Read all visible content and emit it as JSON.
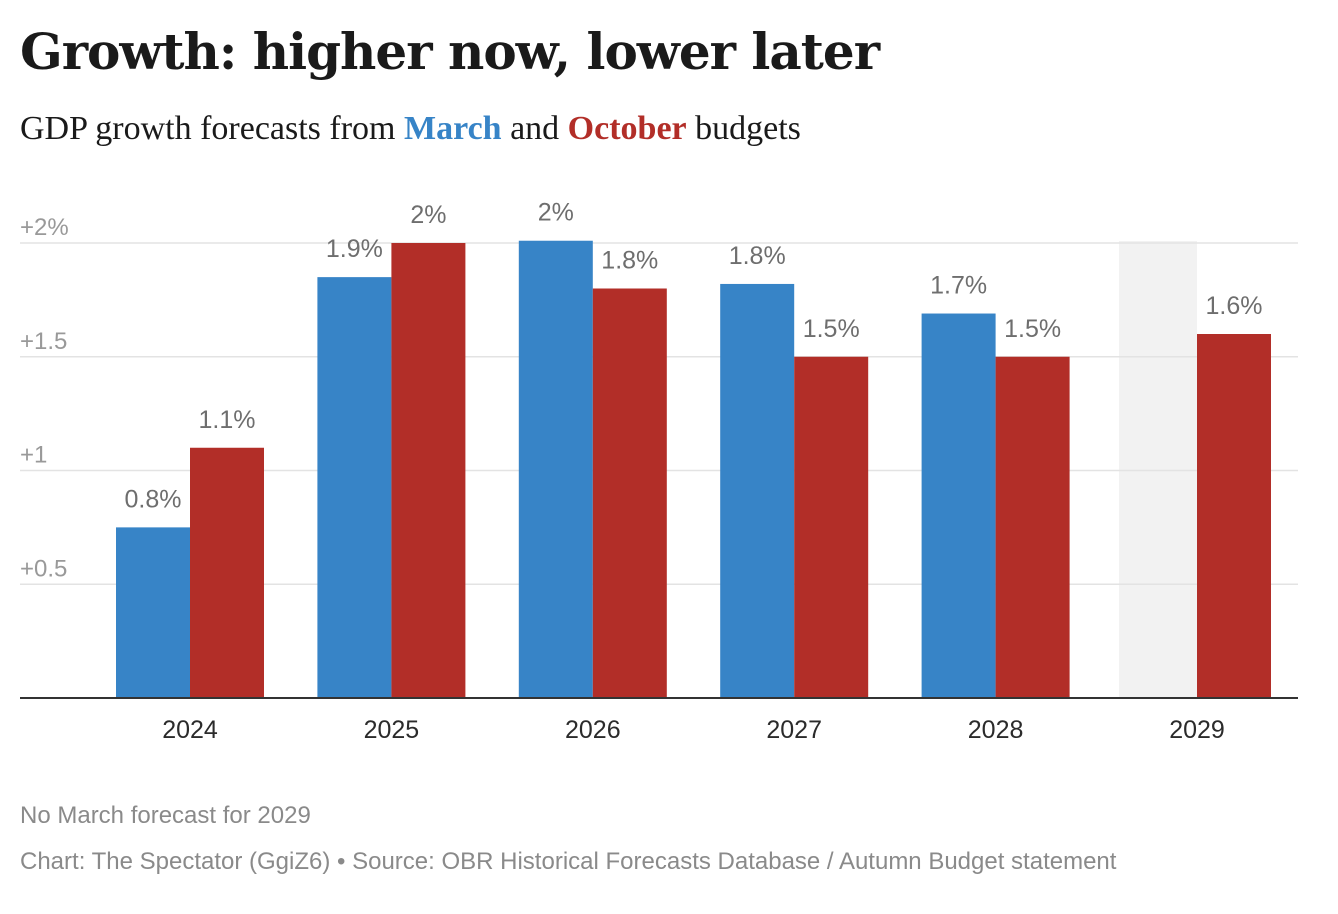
{
  "title": "Growth: higher now, lower later",
  "subtitle": {
    "prefix": "GDP growth forecasts from ",
    "march": "March",
    "middle": " and ",
    "october": "October",
    "suffix": " budgets"
  },
  "colors": {
    "march": "#3784c7",
    "october": "#b22e28",
    "highlight": "#f2f2f2",
    "grid": "#e3e3e3",
    "axis": "#333333",
    "tick": "#999999",
    "label": "#6e6e6e",
    "category": "#2b2b2b"
  },
  "chart_data": {
    "type": "bar",
    "categories": [
      "2024",
      "2025",
      "2026",
      "2027",
      "2028",
      "2029"
    ],
    "series": [
      {
        "name": "March",
        "values": [
          0.75,
          1.85,
          2.01,
          1.82,
          1.69,
          null
        ],
        "labels": [
          "0.8%",
          "1.9%",
          "2%",
          "1.8%",
          "1.7%",
          ""
        ]
      },
      {
        "name": "October",
        "values": [
          1.1,
          2.0,
          1.8,
          1.5,
          1.5,
          1.6
        ],
        "labels": [
          "1.1%",
          "2%",
          "1.8%",
          "1.5%",
          "1.5%",
          "1.6%"
        ]
      }
    ],
    "yticks": [
      {
        "value": 0.5,
        "label": "+0.5"
      },
      {
        "value": 1,
        "label": "+1"
      },
      {
        "value": 1.5,
        "label": "+1.5"
      },
      {
        "value": 2,
        "label": "+2%"
      }
    ],
    "ylim": [
      0,
      2
    ],
    "highlight_category": "2029",
    "grid": true,
    "legend": "in subtitle"
  },
  "note": "No March forecast for 2029",
  "credit": "Chart: The Spectator (GgiZ6) • Source: OBR Historical Forecasts Database / Autumn Budget statement"
}
